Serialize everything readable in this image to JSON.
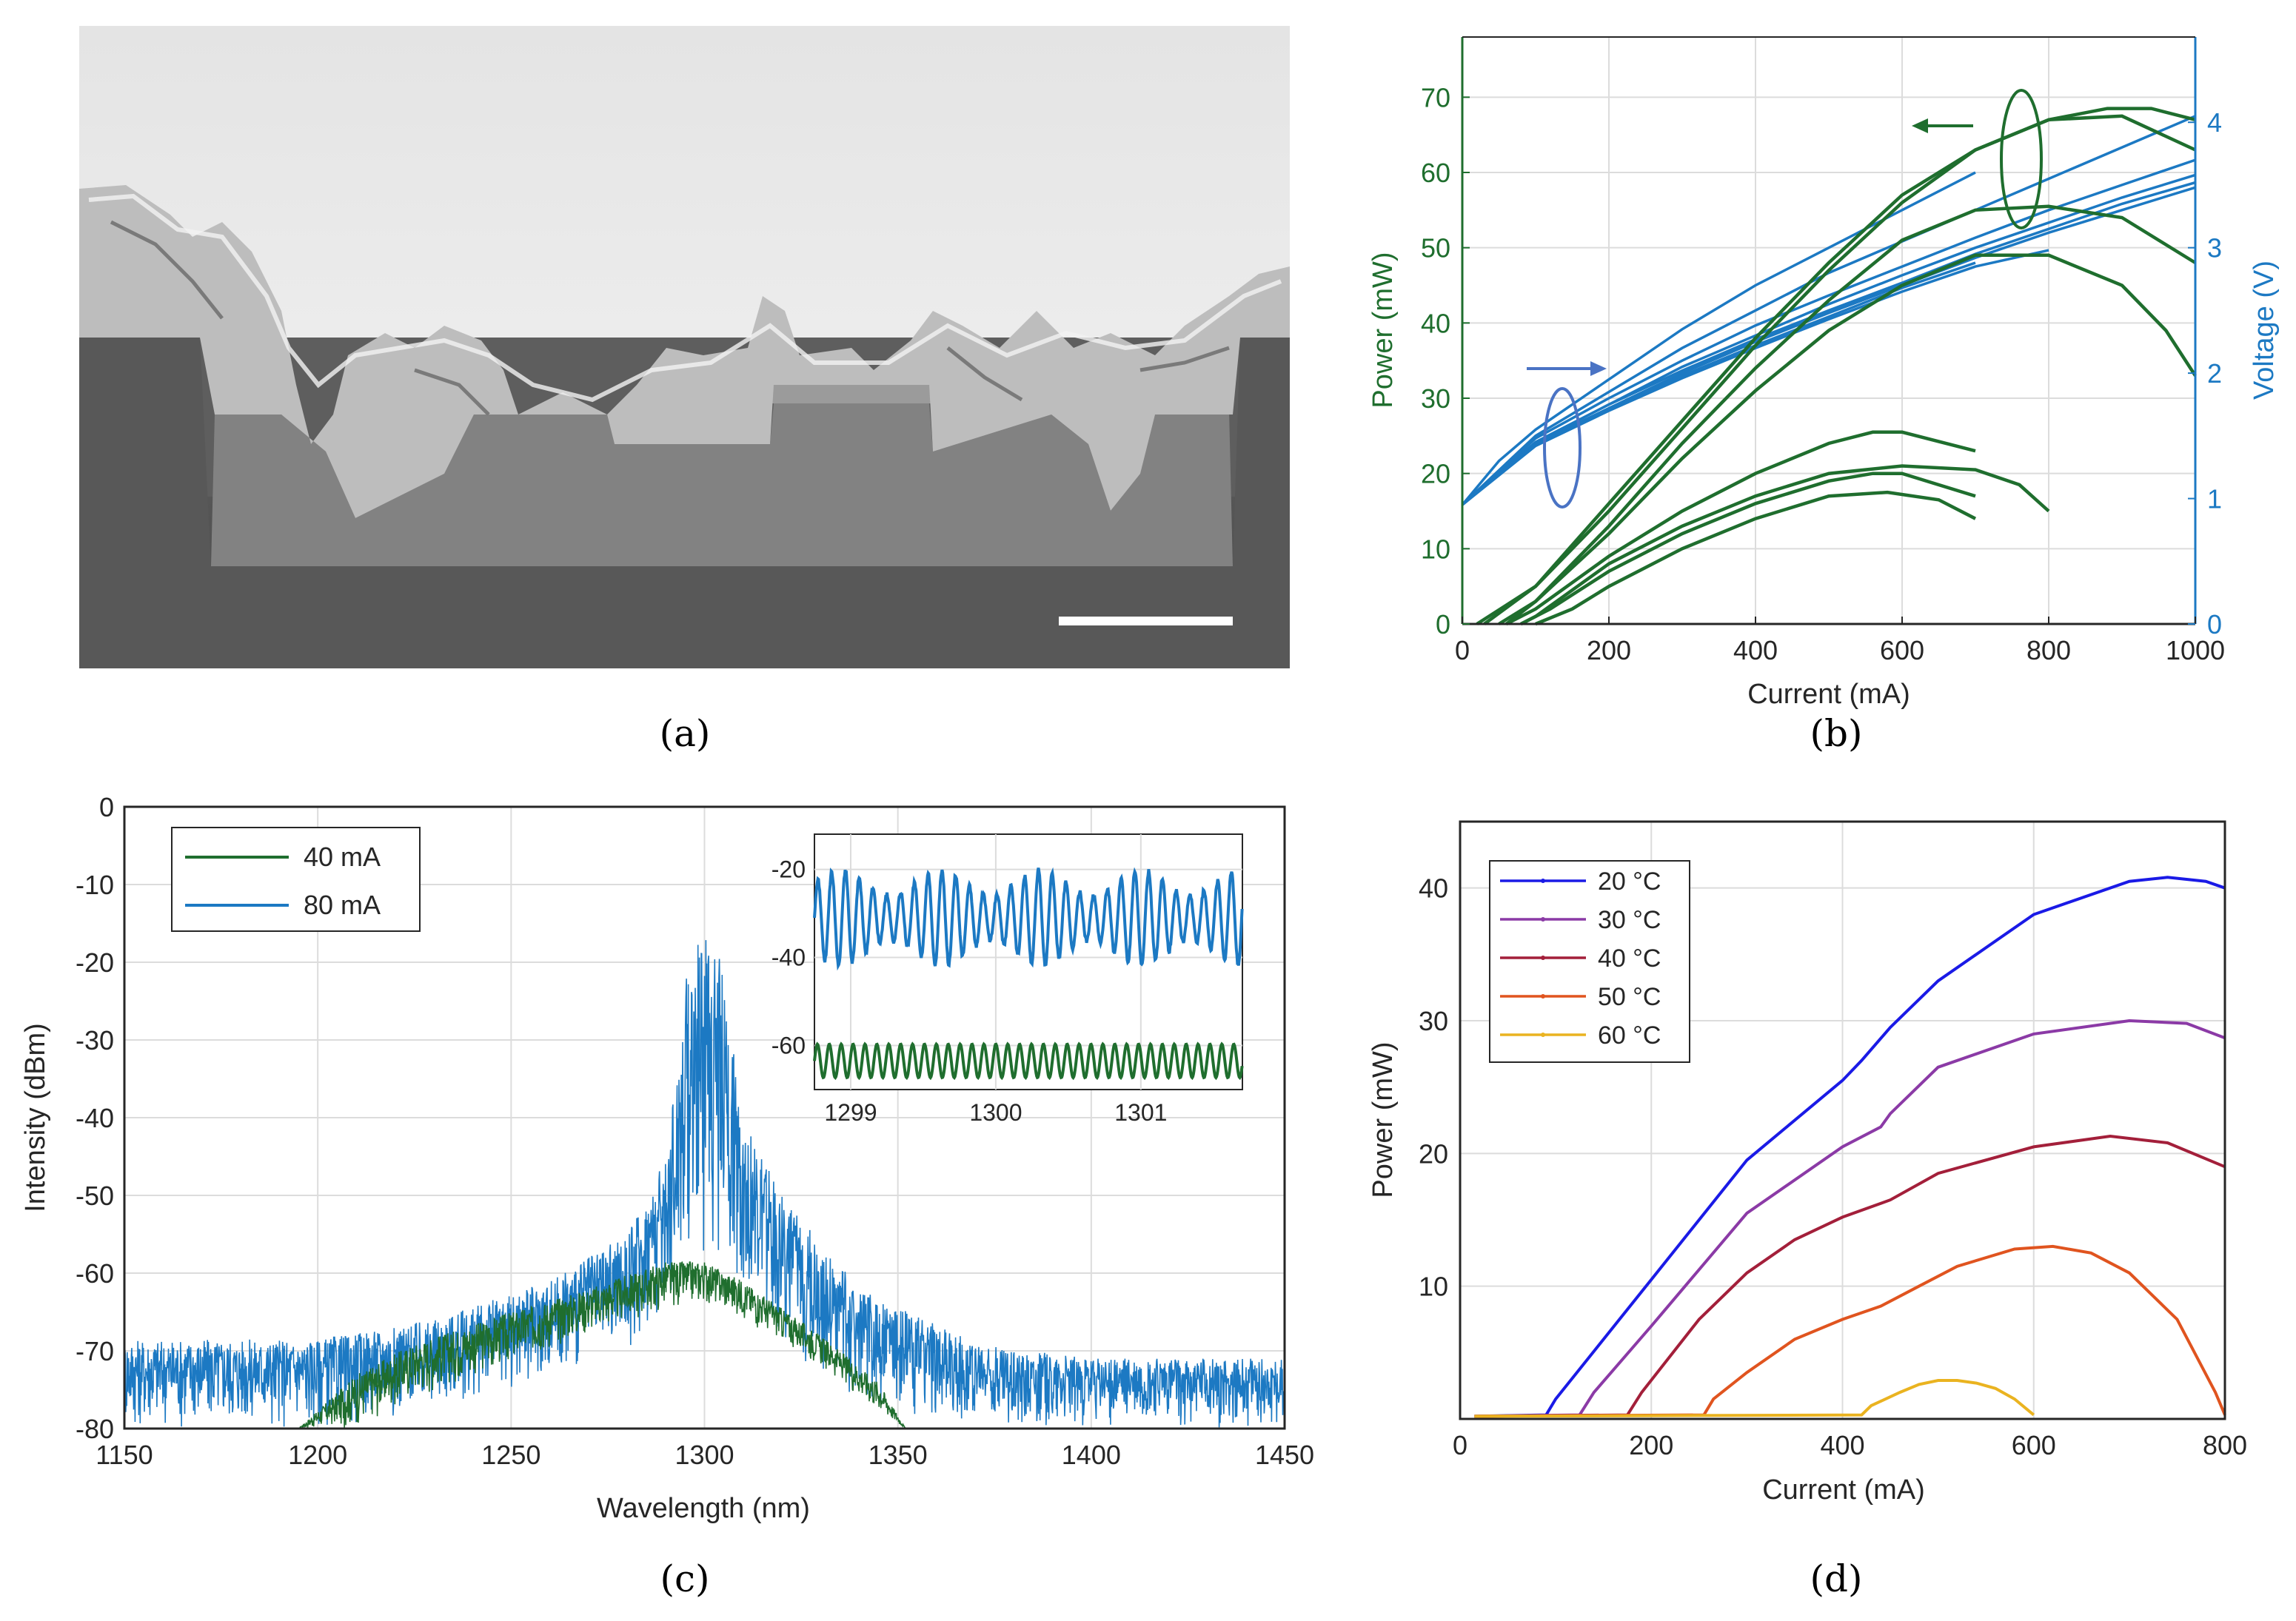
{
  "captions": [
    "(a)",
    "(b)",
    "(c)",
    "(d)"
  ],
  "colors": {
    "green": "#1f6e2e",
    "blue": "#1c79c3",
    "ellipse_blue": "#4a73c4",
    "sem_background": "#5a5a5a",
    "sem_upper": "#e9e9e9",
    "grid": "#dcdcdc"
  },
  "sem_image": {
    "content": "cross-section micrograph",
    "scale_bar": true
  },
  "chart_data": [
    {
      "panel": "b",
      "type": "line",
      "xlabel": "Current (mA)",
      "ylabel": "Power (mW)",
      "y2label": "Voltage (V)",
      "xlim": [
        0,
        1000
      ],
      "ylim": [
        0,
        78
      ],
      "y2lim": [
        0,
        4.68
      ],
      "xticks": [
        "0",
        "200",
        "400",
        "600",
        "800",
        "1000"
      ],
      "yticks": [
        "0",
        "10",
        "20",
        "30",
        "40",
        "50",
        "60",
        "70"
      ],
      "y2ticks": [
        "0",
        "1",
        "2",
        "3",
        "4"
      ],
      "grid": true,
      "power_series": [
        {
          "x": [
            20,
            100,
            200,
            300,
            400,
            500,
            600,
            700,
            800,
            880,
            940,
            1000
          ],
          "y": [
            0,
            5,
            16,
            27,
            38,
            48,
            57,
            63,
            67,
            68.5,
            68.5,
            67
          ]
        },
        {
          "x": [
            30,
            100,
            200,
            300,
            400,
            500,
            600,
            700,
            800,
            900,
            1000
          ],
          "y": [
            0,
            5,
            15,
            26,
            37,
            47,
            56,
            63,
            67,
            67.5,
            63
          ]
        },
        {
          "x": [
            50,
            100,
            200,
            300,
            400,
            500,
            600,
            700,
            800,
            900,
            1000
          ],
          "y": [
            0,
            3,
            13,
            24,
            34,
            43,
            51,
            55,
            55.5,
            54,
            48
          ]
        },
        {
          "x": [
            60,
            100,
            200,
            300,
            400,
            500,
            600,
            700,
            800,
            900,
            960,
            1000
          ],
          "y": [
            0,
            3,
            12,
            22,
            31,
            39,
            45,
            49,
            49,
            45,
            39,
            33
          ]
        },
        {
          "x": [
            60,
            100,
            200,
            300,
            400,
            500,
            560,
            600,
            700
          ],
          "y": [
            0,
            2,
            9,
            15,
            20,
            24,
            25.5,
            25.5,
            23
          ]
        },
        {
          "x": [
            80,
            100,
            200,
            300,
            400,
            500,
            600,
            700,
            760,
            800
          ],
          "y": [
            0,
            1,
            8,
            13,
            17,
            20,
            21,
            20.5,
            18.5,
            15
          ]
        },
        {
          "x": [
            80,
            120,
            200,
            300,
            400,
            500,
            560,
            600,
            700
          ],
          "y": [
            0,
            2,
            7,
            12,
            16,
            19,
            20,
            20,
            17
          ]
        },
        {
          "x": [
            100,
            150,
            200,
            300,
            400,
            500,
            580,
            650,
            700
          ],
          "y": [
            0,
            2,
            5,
            10,
            14,
            17,
            17.5,
            16.5,
            14
          ]
        }
      ],
      "voltage_series": [
        {
          "x": [
            0,
            50,
            100,
            200,
            300,
            400,
            500,
            600,
            700
          ],
          "y": [
            0.95,
            1.3,
            1.55,
            1.95,
            2.35,
            2.7,
            3.0,
            3.3,
            3.6
          ]
        },
        {
          "x": [
            0,
            100,
            200,
            300,
            400,
            500,
            600,
            700,
            800,
            900,
            1000
          ],
          "y": [
            0.95,
            1.5,
            1.85,
            2.2,
            2.5,
            2.8,
            3.05,
            3.3,
            3.55,
            3.8,
            4.05
          ]
        },
        {
          "x": [
            0,
            100,
            200,
            300,
            400,
            500,
            600,
            700,
            800,
            900,
            1000
          ],
          "y": [
            0.95,
            1.48,
            1.8,
            2.1,
            2.38,
            2.62,
            2.85,
            3.08,
            3.3,
            3.5,
            3.7
          ]
        },
        {
          "x": [
            0,
            100,
            200,
            300,
            400,
            500,
            600,
            700,
            800,
            900,
            1000
          ],
          "y": [
            0.95,
            1.45,
            1.75,
            2.05,
            2.3,
            2.55,
            2.78,
            3.0,
            3.2,
            3.4,
            3.58
          ]
        },
        {
          "x": [
            0,
            100,
            200,
            300,
            400,
            500,
            600,
            700,
            800,
            900,
            1000
          ],
          "y": [
            0.95,
            1.45,
            1.75,
            2.02,
            2.27,
            2.5,
            2.72,
            2.95,
            3.15,
            3.35,
            3.52
          ]
        },
        {
          "x": [
            0,
            100,
            200,
            300,
            400,
            500,
            600,
            700,
            800,
            900,
            1000
          ],
          "y": [
            0.95,
            1.44,
            1.72,
            2.0,
            2.25,
            2.48,
            2.7,
            2.92,
            3.12,
            3.3,
            3.48
          ]
        },
        {
          "x": [
            0,
            100,
            200,
            300,
            400,
            500,
            600,
            700
          ],
          "y": [
            0.95,
            1.43,
            1.72,
            1.98,
            2.22,
            2.45,
            2.68,
            2.88
          ]
        },
        {
          "x": [
            0,
            100,
            200,
            300,
            400,
            500,
            600,
            700,
            800
          ],
          "y": [
            0.95,
            1.42,
            1.7,
            1.96,
            2.2,
            2.43,
            2.65,
            2.85,
            2.98
          ]
        }
      ]
    },
    {
      "panel": "c",
      "type": "line",
      "xlabel": "Wavelength (nm)",
      "ylabel": "Intensity (dBm)",
      "xlim": [
        1150,
        1450
      ],
      "ylim": [
        -80,
        0
      ],
      "xticks": [
        "1150",
        "1200",
        "1250",
        "1300",
        "1350",
        "1400",
        "1450"
      ],
      "yticks": [
        "0",
        "-10",
        "-20",
        "-30",
        "-40",
        "-50",
        "-60",
        "-70",
        "-80"
      ],
      "grid": true,
      "legend": "top-left",
      "series": [
        {
          "name": "40 mA",
          "envelope_x": [
            1195,
            1210,
            1225,
            1250,
            1270,
            1290,
            1300,
            1310,
            1330,
            1345,
            1352
          ],
          "envelope_top": [
            -80,
            -73,
            -69,
            -65,
            -62,
            -58.5,
            -58.5,
            -61,
            -68,
            -74,
            -80
          ],
          "envelope_bottom": [
            -80,
            -80,
            -76,
            -72,
            -68,
            -65,
            -64,
            -66,
            -72,
            -78,
            -80
          ]
        },
        {
          "name": "80 mA",
          "envelope_x": [
            1150,
            1200,
            1230,
            1260,
            1280,
            1290,
            1296,
            1300,
            1304,
            1310,
            1320,
            1340,
            1370,
            1400,
            1450
          ],
          "envelope_top": [
            -68.5,
            -68.5,
            -66,
            -61,
            -55,
            -45,
            -19,
            -16,
            -19,
            -40,
            -50,
            -62,
            -69,
            -71,
            -71
          ],
          "envelope_bottom": [
            -80,
            -80,
            -78,
            -74,
            -70,
            -66,
            -60,
            -58,
            -60,
            -64,
            -70,
            -77,
            -80,
            -80,
            -80
          ]
        }
      ],
      "inset": {
        "xlim": [
          1298.75,
          1301.7
        ],
        "ylim": [
          -70,
          -12
        ],
        "xticks": [
          "1299",
          "1300",
          "1301"
        ],
        "yticks": [
          "-20",
          "-40",
          "-60"
        ],
        "series": [
          {
            "name": "80 mA",
            "center": -31,
            "amplitude": 8,
            "period": 0.095
          },
          {
            "name": "40 mA",
            "center": -63.5,
            "amplitude": 3.8,
            "period": 0.082
          }
        ]
      }
    },
    {
      "panel": "d",
      "type": "line",
      "xlabel": "Current (mA)",
      "ylabel": "Power (mW)",
      "xlim": [
        0,
        800
      ],
      "ylim": [
        0,
        45
      ],
      "xticks": [
        "0",
        "200",
        "400",
        "600",
        "800"
      ],
      "yticks": [
        "10",
        "20",
        "30",
        "40"
      ],
      "grid": true,
      "legend": "top-left",
      "series": [
        {
          "name": "20 °C",
          "color": "#1a1ae6",
          "x": [
            15,
            90,
            100,
            200,
            300,
            400,
            420,
            450,
            500,
            600,
            700,
            740,
            780,
            800
          ],
          "y": [
            0.2,
            0.3,
            1.5,
            10.5,
            19.5,
            25.5,
            27,
            29.5,
            33,
            38,
            40.5,
            40.8,
            40.5,
            40
          ]
        },
        {
          "name": "30 °C",
          "color": "#8b3aa6",
          "x": [
            15,
            125,
            140,
            200,
            300,
            400,
            440,
            450,
            500,
            600,
            700,
            760,
            800
          ],
          "y": [
            0.2,
            0.3,
            2,
            7,
            15.5,
            20.5,
            22,
            23,
            26.5,
            29,
            30,
            29.8,
            28.7
          ]
        },
        {
          "name": "40 °C",
          "color": "#a31f3a",
          "x": [
            15,
            175,
            190,
            250,
            300,
            350,
            400,
            450,
            500,
            600,
            680,
            740,
            800
          ],
          "y": [
            0.2,
            0.3,
            2,
            7.5,
            11,
            13.5,
            15.2,
            16.5,
            18.5,
            20.5,
            21.3,
            20.8,
            19
          ]
        },
        {
          "name": "50 °C",
          "color": "#e0541f",
          "x": [
            15,
            255,
            265,
            300,
            350,
            400,
            440,
            480,
            520,
            580,
            620,
            660,
            700,
            750,
            790,
            800
          ],
          "y": [
            0.2,
            0.3,
            1.5,
            3.5,
            6,
            7.5,
            8.5,
            10,
            11.5,
            12.8,
            13,
            12.5,
            11,
            7.5,
            2,
            0.3
          ]
        },
        {
          "name": "60 °C",
          "color": "#eab320",
          "x": [
            15,
            420,
            430,
            460,
            480,
            500,
            520,
            540,
            560,
            580,
            600
          ],
          "y": [
            0.2,
            0.3,
            1,
            2,
            2.6,
            2.9,
            2.9,
            2.7,
            2.3,
            1.5,
            0.3
          ]
        }
      ]
    }
  ]
}
